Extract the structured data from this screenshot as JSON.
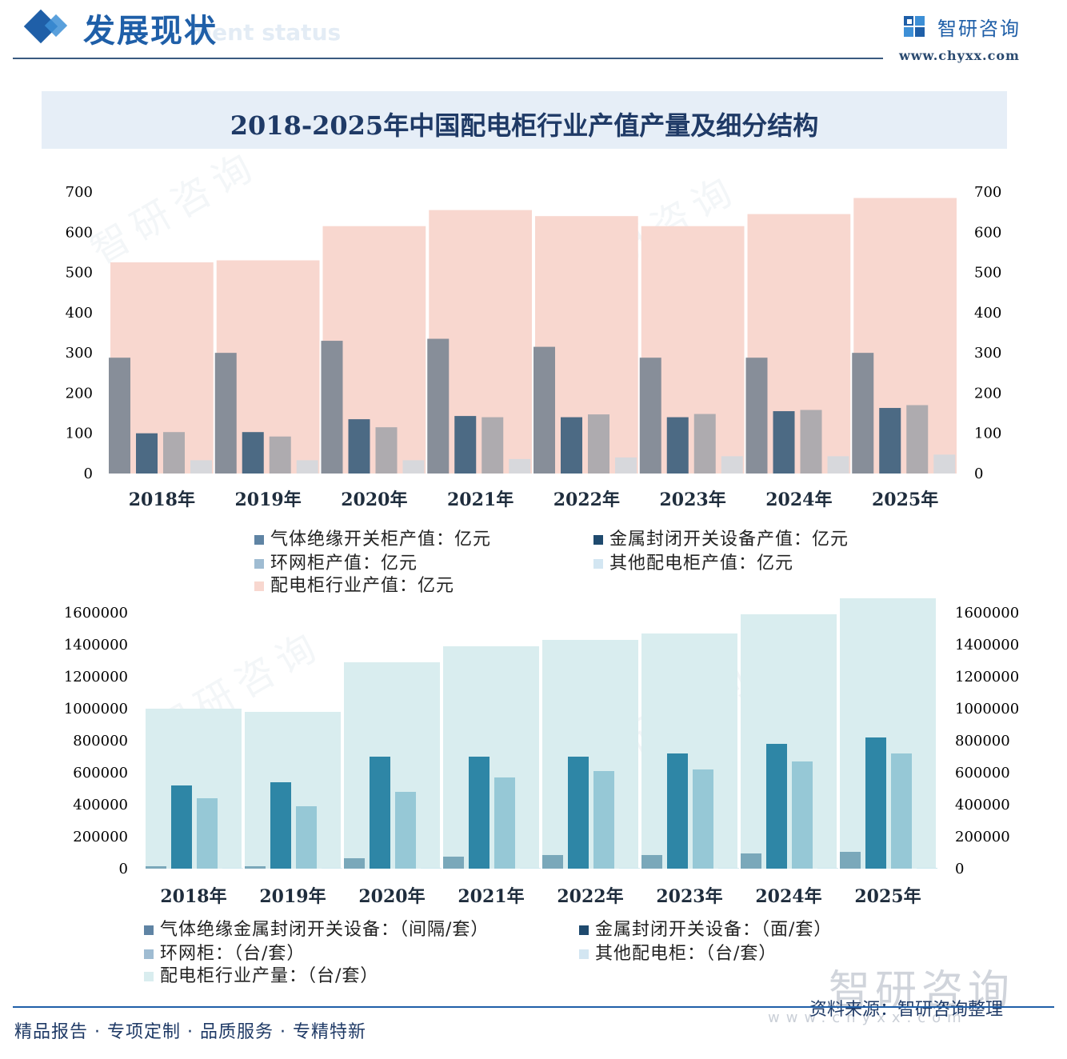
{
  "header": {
    "section_title": "发展现状",
    "section_subtitle": "ment status",
    "brand_name": "智研咨询",
    "brand_url": "www.chyxx.com"
  },
  "title": "2018-2025年中国配电柜行业产值产量及细分结构",
  "chart_data": [
    {
      "type": "bar",
      "categories": [
        "2018年",
        "2019年",
        "2020年",
        "2021年",
        "2022年",
        "2023年",
        "2024年",
        "2025年"
      ],
      "ylim": [
        0,
        700
      ],
      "yticks": [
        "0",
        "100",
        "200",
        "300",
        "400",
        "500",
        "600",
        "700"
      ],
      "background_series": {
        "name": "配电柜行业产值：亿元",
        "color": "#f8d7cf",
        "values": [
          525,
          530,
          615,
          655,
          640,
          615,
          645,
          685
        ]
      },
      "series": [
        {
          "name": "气体绝缘开关柜产值：亿元",
          "color": "#878e99",
          "values": [
            288,
            300,
            330,
            335,
            315,
            288,
            288,
            300
          ]
        },
        {
          "name": "金属封闭开关设备产值：亿元",
          "color": "#4c6a84",
          "values": [
            100,
            103,
            135,
            143,
            140,
            140,
            155,
            163
          ]
        },
        {
          "name": "环网柜产值：亿元",
          "color": "#aeabaf",
          "values": [
            103,
            92,
            115,
            140,
            147,
            148,
            158,
            170
          ]
        },
        {
          "name": "其他配电柜产值：亿元",
          "color": "#d7d8dc",
          "values": [
            33,
            33,
            33,
            36,
            40,
            43,
            43,
            47
          ]
        }
      ],
      "legend": [
        {
          "label": "气体绝缘开关柜产值：亿元",
          "color": "#5f84a4"
        },
        {
          "label": "金属封闭开关设备产值：亿元",
          "color": "#1f4a6e"
        },
        {
          "label": "环网柜产值：亿元",
          "color": "#9fbcd2"
        },
        {
          "label": "其他配电柜产值：亿元",
          "color": "#d3e6f2"
        },
        {
          "label": "配电柜行业产值：亿元",
          "color": "#f8d7cf"
        }
      ]
    },
    {
      "type": "bar",
      "categories": [
        "2018年",
        "2019年",
        "2020年",
        "2021年",
        "2022年",
        "2023年",
        "2024年",
        "2025年"
      ],
      "ylim": [
        0,
        1600000
      ],
      "yticks": [
        "0",
        "200000",
        "400000",
        "600000",
        "800000",
        "1000000",
        "1200000",
        "1400000",
        "1600000"
      ],
      "background_series": {
        "name": "配电柜行业产量：（台/套）",
        "color": "#d9edef",
        "values": [
          1000000,
          980000,
          1290000,
          1390000,
          1430000,
          1470000,
          1590000,
          1690000
        ]
      },
      "series": [
        {
          "name": "气体绝缘金属封闭开关设备：（间隔/套）",
          "color": "#7aa8ba",
          "values": [
            15000,
            15000,
            65000,
            75000,
            85000,
            85000,
            95000,
            105000
          ]
        },
        {
          "name": "金属封闭开关设备：（面/套）",
          "color": "#2e86a6",
          "values": [
            520000,
            540000,
            700000,
            700000,
            700000,
            720000,
            780000,
            820000
          ]
        },
        {
          "name": "环网柜：（台/套）",
          "color": "#96c8d6",
          "values": [
            440000,
            390000,
            480000,
            570000,
            610000,
            620000,
            670000,
            720000
          ]
        },
        {
          "name": "其他配电柜：（台/套）",
          "color": "#c9e6ee",
          "values": [
            3000,
            3000,
            4000,
            4000,
            4000,
            4000,
            4000,
            5000
          ]
        }
      ],
      "legend": [
        {
          "label": "气体绝缘金属封闭开关设备：（间隔/套）",
          "color": "#5f84a4"
        },
        {
          "label": "金属封闭开关设备：（面/套）",
          "color": "#1f4a6e"
        },
        {
          "label": "环网柜：（台/套）",
          "color": "#9fbcd2"
        },
        {
          "label": "其他配电柜：（台/套）",
          "color": "#d3e6f2"
        },
        {
          "label": "配电柜行业产量：（台/套）",
          "color": "#d9edef"
        }
      ]
    }
  ],
  "watermark": {
    "brand_big": "智研咨询",
    "url_big": "www.chyxx.com"
  },
  "footer": {
    "slogan": "精品报告 · 专项定制 · 品质服务 · 专精特新",
    "source": "资料来源：智研咨询整理"
  }
}
